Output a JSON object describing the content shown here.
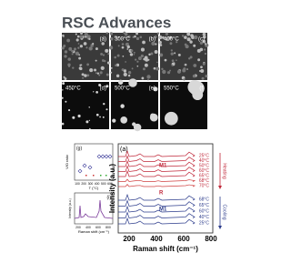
{
  "header": {
    "title": "RSC Advances"
  },
  "micrographs": [
    {
      "label": "(a)"
    },
    {
      "temp": "300°C",
      "label": "(b)"
    },
    {
      "temp": "400°C",
      "label": "(c)"
    },
    {
      "temp": "450°C",
      "label": "(d)"
    },
    {
      "temp": "500°C",
      "label": "(e)"
    },
    {
      "temp": "550°C",
      "label": "(f)"
    }
  ],
  "plot_g": {
    "label": "(g)",
    "y_axis": "V/O ratio",
    "x_axis": "T (°C)",
    "x_ticks": [
      "100",
      "200",
      "300",
      "400",
      "500",
      "600"
    ]
  },
  "plot_i": {
    "label": "(i)",
    "y_axis": "Intensity (a.u.)",
    "x_axis": "Raman shift (cm⁻¹)",
    "x_ticks": [
      "200",
      "400",
      "600",
      "800"
    ]
  },
  "plot_a": {
    "label": "(a)",
    "y_axis": "Intensity (a.u.)",
    "x_axis": "Raman shift (cm⁻¹)",
    "x_ticks": [
      "200",
      "400",
      "600",
      "800"
    ],
    "heating_temps": [
      "25°C",
      "40°C",
      "50°C",
      "60°C",
      "65°C",
      "68°C",
      "70°C"
    ],
    "cooling_temps": [
      "68°C",
      "65°C",
      "60°C",
      "40°C",
      "25°C"
    ],
    "phase_top": "M1",
    "phase_mid": "R",
    "phase_bottom": "M1",
    "heating": "Heating",
    "cooling": "Cooling"
  }
}
